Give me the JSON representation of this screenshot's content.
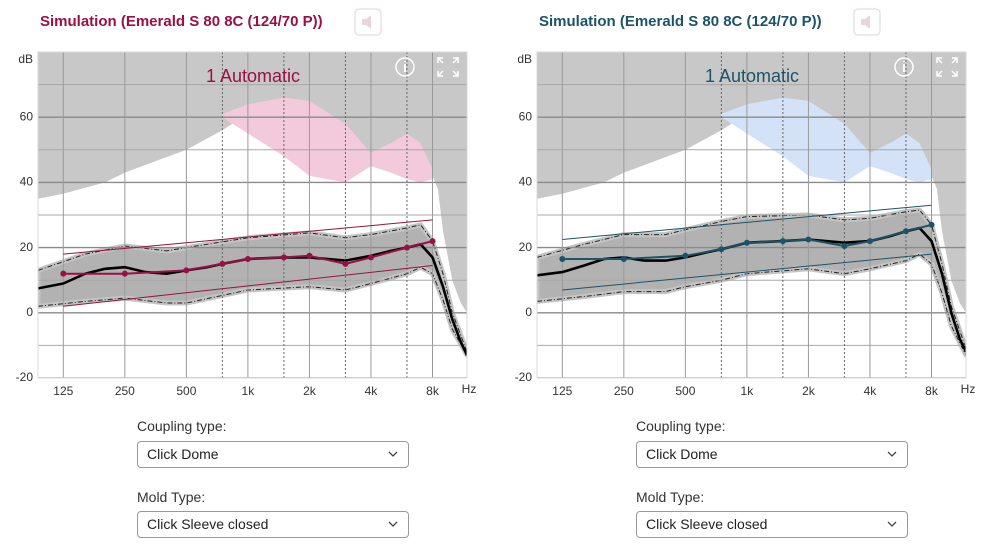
{
  "panels": [
    {
      "title": "Simulation (Emerald S 80 8C (124/70 P))",
      "title_color": "#9b1044",
      "chart_data": {
        "type": "line",
        "annotation": "1 Automatic",
        "ylabel": "dB",
        "xlabel": "Hz",
        "xscale": "log",
        "grid": true,
        "xlim": [
          94,
          11800
        ],
        "ylim": [
          -20,
          80
        ],
        "xticks": [
          125,
          250,
          500,
          {
            "value": 1000,
            "label": "1k"
          },
          {
            "value": 2000,
            "label": "2k"
          },
          {
            "value": 4000,
            "label": "4k"
          },
          {
            "value": 8000,
            "label": "8k"
          }
        ],
        "minor_xticks": [
          750,
          1500,
          3000,
          6000
        ],
        "yticks": [
          -20,
          0,
          20,
          40,
          60
        ],
        "minor_yticks": [
          -10,
          10,
          30,
          50,
          70
        ],
        "series": [
          {
            "style": "fill-above",
            "color": "#c8c8c8",
            "x": [
              94,
              125,
              200,
              250,
              500,
              750,
              1000,
              1500,
              2000,
              3000,
              4000,
              5000,
              6000,
              7000,
              8000,
              8500,
              9000,
              10000,
              11000,
              11800
            ],
            "values": [
              35,
              36.5,
              40,
              43,
              50,
              56,
              61,
              63,
              63,
              52,
              49,
              52,
              50,
              47,
              42,
              38,
              25,
              10,
              3,
              0
            ]
          },
          {
            "style": "band",
            "color": "#f2cadb",
            "x": [
              750,
              1000,
              1500,
              2000,
              3000,
              4000,
              5000,
              6000,
              7000,
              8000
            ],
            "values": [
              61,
              64,
              66,
              65,
              58,
              49,
              52,
              55,
              52,
              44
            ],
            "lower": [
              60,
              55,
              48,
              42,
              40,
              45,
              43,
              41,
              40,
              41
            ]
          },
          {
            "style": "band-dashed",
            "color": "#b2b2b2",
            "x": [
              94,
              160,
              250,
              400,
              500,
              1000,
              2000,
              3000,
              4000,
              6000,
              7000,
              8000,
              9000,
              10000,
              11800
            ],
            "values": [
              13,
              18,
              20.5,
              19,
              20,
              23,
              24.5,
              23,
              24,
              26,
              27,
              22,
              12,
              0,
              -12
            ],
            "lower": [
              2,
              3.5,
              4.5,
              3,
              3,
              7,
              8,
              7,
              9,
              12,
              14,
              12,
              4,
              -5,
              -13
            ]
          },
          {
            "style": "thin",
            "color": "#9b1044",
            "x": [
              125,
              8000
            ],
            "values": [
              18,
              28.5
            ]
          },
          {
            "style": "thin",
            "color": "#9b1044",
            "x": [
              125,
              8000
            ],
            "values": [
              2,
              14.5
            ]
          },
          {
            "style": "thick",
            "color": "#000000",
            "x": [
              94,
              125,
              160,
              200,
              250,
              315,
              400,
              500,
              630,
              750,
              1000,
              1500,
              2000,
              3000,
              4000,
              5000,
              6000,
              7000,
              8000,
              9000,
              10000,
              11000,
              11800
            ],
            "values": [
              7.5,
              9,
              12,
              13.5,
              14,
              12.5,
              12,
              13,
              14,
              15,
              16.5,
              17,
              17,
              16,
              17.5,
              19,
              20,
              21,
              17,
              8,
              -2,
              -9,
              -13
            ]
          },
          {
            "style": "markers",
            "color": "#9b1044",
            "x": [
              125,
              250,
              500,
              750,
              1000,
              1500,
              2000,
              3000,
              4000,
              6000,
              8000
            ],
            "values": [
              12,
              12,
              13,
              15,
              16.5,
              17,
              17.5,
              15,
              17,
              20,
              22
            ]
          }
        ]
      },
      "coupling": {
        "label": "Coupling type:",
        "value": "Click Dome"
      },
      "mold": {
        "label": "Mold Type:",
        "value": "Click Sleeve closed"
      }
    },
    {
      "title": "Simulation (Emerald S 80 8C (124/70 P))",
      "title_color": "#1b5468",
      "chart_data": {
        "type": "line",
        "annotation": "1 Automatic",
        "ylabel": "dB",
        "xlabel": "Hz",
        "xscale": "log",
        "grid": true,
        "xlim": [
          94,
          11800
        ],
        "ylim": [
          -20,
          80
        ],
        "xticks": [
          125,
          250,
          500,
          {
            "value": 1000,
            "label": "1k"
          },
          {
            "value": 2000,
            "label": "2k"
          },
          {
            "value": 4000,
            "label": "4k"
          },
          {
            "value": 8000,
            "label": "8k"
          }
        ],
        "minor_xticks": [
          750,
          1500,
          3000,
          6000
        ],
        "yticks": [
          -20,
          0,
          20,
          40,
          60
        ],
        "minor_yticks": [
          -10,
          10,
          30,
          50,
          70
        ],
        "series": [
          {
            "style": "fill-above",
            "color": "#c8c8c8",
            "x": [
              94,
              125,
              200,
              250,
              500,
              750,
              1000,
              1500,
              2000,
              3000,
              4000,
              5000,
              6000,
              7000,
              8000,
              8500,
              9000,
              10000,
              11000,
              11800
            ],
            "values": [
              35,
              36.5,
              40,
              43,
              50,
              56,
              61,
              63,
              63,
              52,
              49,
              52,
              50,
              47,
              42,
              38,
              25,
              10,
              3,
              0
            ]
          },
          {
            "style": "band",
            "color": "#d3e2f7",
            "x": [
              750,
              1000,
              1500,
              2000,
              3000,
              4000,
              5000,
              6000,
              7000,
              8000
            ],
            "values": [
              61,
              64,
              66,
              65,
              58,
              49,
              52,
              55,
              52,
              44
            ],
            "lower": [
              60,
              55,
              48,
              42,
              40,
              45,
              43,
              41,
              40,
              41
            ]
          },
          {
            "style": "band-dashed",
            "color": "#b2b2b2",
            "x": [
              94,
              160,
              250,
              400,
              500,
              750,
              1000,
              2000,
              3000,
              4000,
              6000,
              7000,
              8000,
              9000,
              10000,
              11800
            ],
            "values": [
              17,
              21,
              24,
              24,
              25.5,
              28,
              29.5,
              30,
              28.5,
              29,
              31,
              31.5,
              27,
              15,
              2,
              -11
            ],
            "lower": [
              3.5,
              5,
              6.5,
              6.5,
              8,
              10,
              12,
              13.5,
              12,
              13.5,
              16,
              18,
              15,
              6,
              -4,
              -13
            ]
          },
          {
            "style": "thin",
            "color": "#1b5468",
            "x": [
              125,
              8000
            ],
            "values": [
              22.5,
              33
            ]
          },
          {
            "style": "thin",
            "color": "#1b5468",
            "x": [
              125,
              8000
            ],
            "values": [
              7,
              18
            ]
          },
          {
            "style": "thick",
            "color": "#000000",
            "x": [
              94,
              125,
              160,
              200,
              250,
              315,
              400,
              500,
              630,
              750,
              1000,
              1500,
              2000,
              3000,
              4000,
              5000,
              6000,
              7000,
              8000,
              9000,
              10000,
              11000,
              11800
            ],
            "values": [
              11.5,
              12.5,
              14.5,
              16.5,
              17,
              16,
              16,
              17,
              18.5,
              19.5,
              21.5,
              22,
              22.5,
              21.5,
              22,
              23.5,
              25,
              26,
              22,
              12,
              0,
              -8,
              -12
            ]
          },
          {
            "style": "markers",
            "color": "#1b5468",
            "x": [
              125,
              250,
              500,
              750,
              1000,
              1500,
              2000,
              3000,
              4000,
              6000,
              8000
            ],
            "values": [
              16.5,
              16.5,
              17.5,
              19.5,
              21.5,
              22,
              22.5,
              20.5,
              22,
              25,
              27
            ]
          }
        ]
      },
      "coupling": {
        "label": "Coupling type:",
        "value": "Click Dome"
      },
      "mold": {
        "label": "Mold Type:",
        "value": "Click Sleeve closed"
      }
    }
  ]
}
